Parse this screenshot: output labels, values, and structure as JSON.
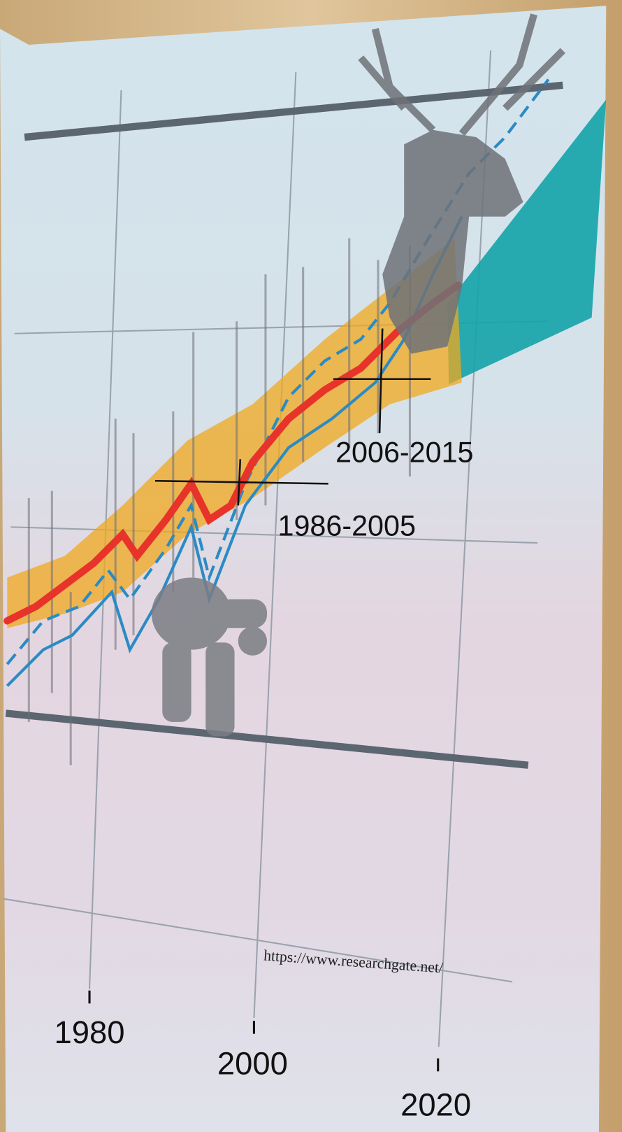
{
  "annotations": {
    "period_recent": "2006-2015",
    "period_reference": "1986-2005"
  },
  "x_axis_labels": [
    "1980",
    "2000",
    "2020"
  ],
  "source_url": "https://www.researchgate.net/"
}
